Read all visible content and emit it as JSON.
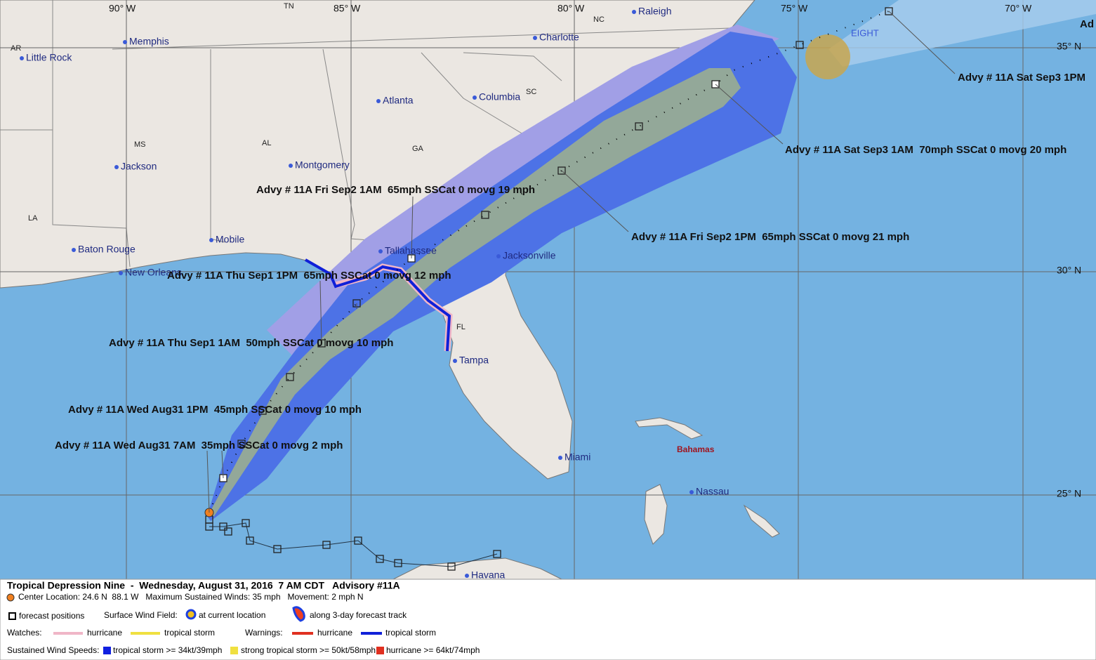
{
  "map": {
    "lon_labels": [
      "90° W",
      "85° W",
      "80° W",
      "75° W",
      "70° W"
    ],
    "lat_labels": [
      "35° N",
      "30° N",
      "25° N"
    ],
    "states": [
      "TN",
      "NC",
      "AR",
      "SC",
      "MS",
      "AL",
      "GA",
      "LA",
      "FL"
    ],
    "cities": [
      "Raleigh",
      "Memphis",
      "Charlotte",
      "Little Rock",
      "Atlanta",
      "Columbia",
      "Jackson",
      "Montgomery",
      "Mobile",
      "Baton Rouge",
      "Tallahassee",
      "New Orleans",
      "Jacksonville",
      "Tampa",
      "Miami",
      "Nassau",
      "Havana"
    ],
    "region_label": "Bahamas",
    "storm_label": "EIGHT",
    "cut_label": "Ad",
    "advisories": [
      "Advy # 11A Sat Sep3 1PM",
      "Advy # 11A Sat Sep3 1AM  70mph SSCat 0 movg 20 mph",
      "Advy # 11A Fri Sep2 1AM  65mph SSCat 0 movg 19 mph",
      "Advy # 11A Fri Sep2 1PM  65mph SSCat 0 movg 21 mph",
      "Advy # 11A Thu Sep1 1PM  65mph SSCat 0 movg 12 mph",
      "Advy # 11A Thu Sep1 1AM  50mph SSCat 0 movg 10 mph",
      "Advy # 11A Wed Aug31 1PM  45mph SSCat 0 movg 10 mph",
      "Advy # 11A Wed Aug31 7AM  35mph SSCat 0 movg 2 mph"
    ]
  },
  "legend": {
    "title": "Tropical Depression Nine  -  Wednesday, August 31, 2016  7 AM CDT   Advisory #11A",
    "info": "Center Location: 24.6 N  88.1 W   Maximum Sustained Winds: 35 mph   Movement: 2 mph N",
    "forecast_positions": "forecast positions",
    "wind_field": "Surface Wind Field:",
    "at_current": "at current location",
    "along_track": "along 3-day forecast track",
    "watches": "Watches:",
    "watch_hurricane": "hurricane",
    "watch_ts": "tropical storm",
    "warnings": "Warnings:",
    "warn_hurricane": "hurricane",
    "warn_ts": "tropical storm",
    "speeds": "Sustained Wind Speeds:",
    "speed_ts": "tropical storm >= 34kt/39mph",
    "speed_sts": "strong tropical storm >= 50kt/58mph",
    "speed_h": "hurricane >= 64kt/74mph"
  }
}
